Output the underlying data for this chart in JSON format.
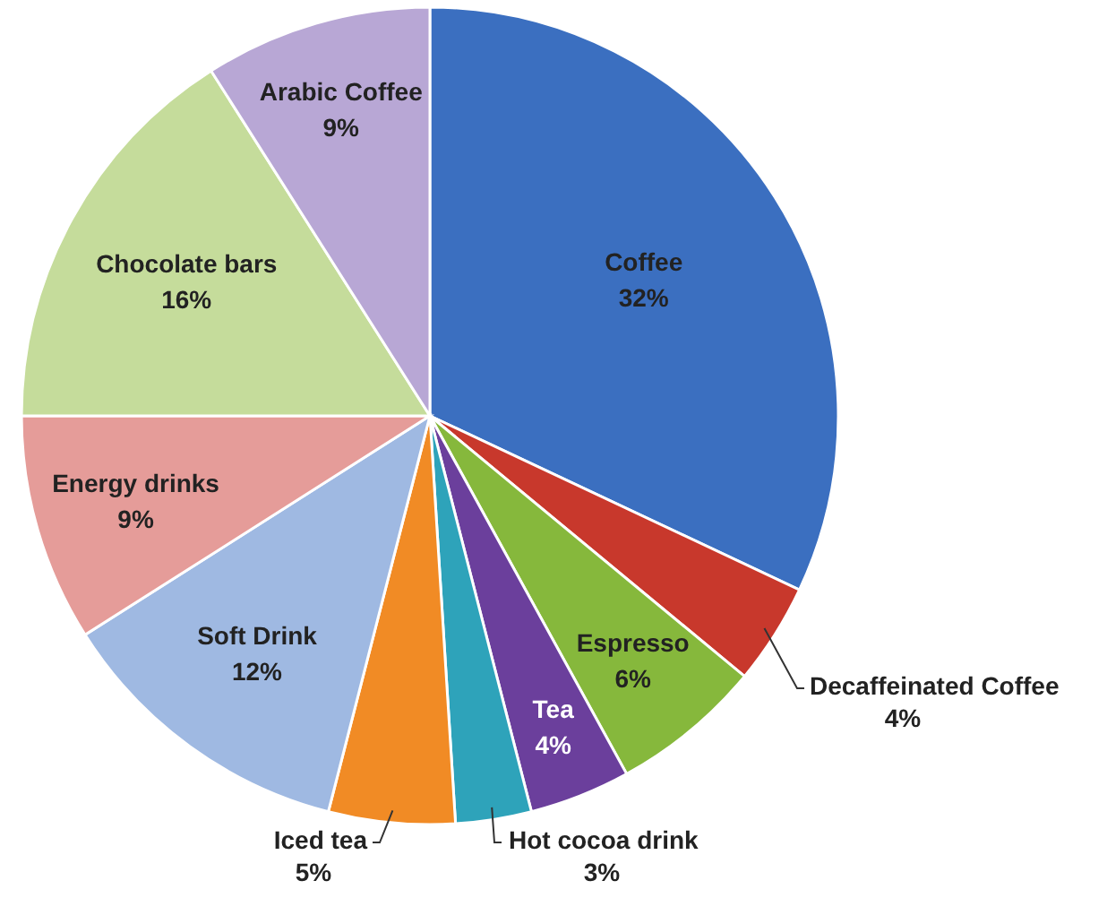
{
  "chart_data": {
    "type": "pie",
    "categories": [
      "Coffee",
      "Decaffeinated Coffee",
      "Espresso",
      "Tea",
      "Hot cocoa drink",
      "Iced tea",
      "Soft Drink",
      "Energy drinks",
      "Chocolate bars",
      "Arabic Coffee"
    ],
    "values": [
      32,
      4,
      6,
      4,
      3,
      5,
      12,
      9,
      16,
      9
    ],
    "value_labels": [
      "32%",
      "4%",
      "6%",
      "4%",
      "3%",
      "5%",
      "12%",
      "9%",
      "16%",
      "9%"
    ],
    "colors": [
      "#3b6fc0",
      "#c8382c",
      "#86b83c",
      "#6b3f9c",
      "#2ea3ba",
      "#f18b25",
      "#9fb9e2",
      "#e59c99",
      "#c5dc9b",
      "#b8a7d5"
    ]
  }
}
